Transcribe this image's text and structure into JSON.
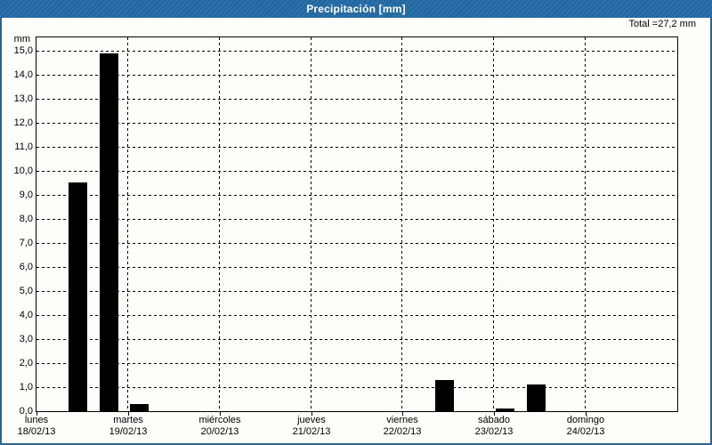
{
  "window": {
    "title": "Precipitación [mm]"
  },
  "total_label": "Total =27,2 mm",
  "colors": {
    "titlebar_bg": "#2169a4",
    "frame_border": "#2e6490",
    "background": "#fdfdfa",
    "bar_fill": "#000000",
    "grid_line": "#000000",
    "title_text": "#ffffff",
    "axis_text": "#000000"
  },
  "chart_data": {
    "type": "bar",
    "title": "Precipitación [mm]",
    "y_unit_label": "mm",
    "ylabel": "mm",
    "xlabel": "",
    "ylim": [
      0,
      15.7
    ],
    "gridline_step": 1.0,
    "grid": true,
    "legend": "none",
    "y_ticks": [
      "0,0",
      "1,0",
      "2,0",
      "3,0",
      "4,0",
      "5,0",
      "6,0",
      "7,0",
      "8,0",
      "9,0",
      "10,0",
      "11,0",
      "12,0",
      "13,0",
      "14,0",
      "15,0"
    ],
    "days": [
      {
        "name": "lunes",
        "date": "18/02/13"
      },
      {
        "name": "martes",
        "date": "19/02/13"
      },
      {
        "name": "miércoles",
        "date": "20/02/13"
      },
      {
        "name": "jueves",
        "date": "21/02/13"
      },
      {
        "name": "viernes",
        "date": "22/02/13"
      },
      {
        "name": "sábado",
        "date": "23/02/13"
      },
      {
        "name": "domingo",
        "date": "24/02/13"
      }
    ],
    "slots_per_day": 3,
    "bars": [
      {
        "day": 0,
        "day_label": "lunes 18/02/13",
        "slot": 1,
        "value_mm": 9.5
      },
      {
        "day": 0,
        "day_label": "lunes 18/02/13",
        "slot": 2,
        "value_mm": 14.9
      },
      {
        "day": 1,
        "day_label": "martes 19/02/13",
        "slot": 0,
        "value_mm": 0.3
      },
      {
        "day": 4,
        "day_label": "viernes 22/02/13",
        "slot": 1,
        "value_mm": 1.3
      },
      {
        "day": 5,
        "day_label": "sábado 23/02/13",
        "slot": 0,
        "value_mm": 0.1
      },
      {
        "day": 5,
        "day_label": "sábado 23/02/13",
        "slot": 1,
        "value_mm": 1.1
      }
    ],
    "total_mm": 27.2
  }
}
